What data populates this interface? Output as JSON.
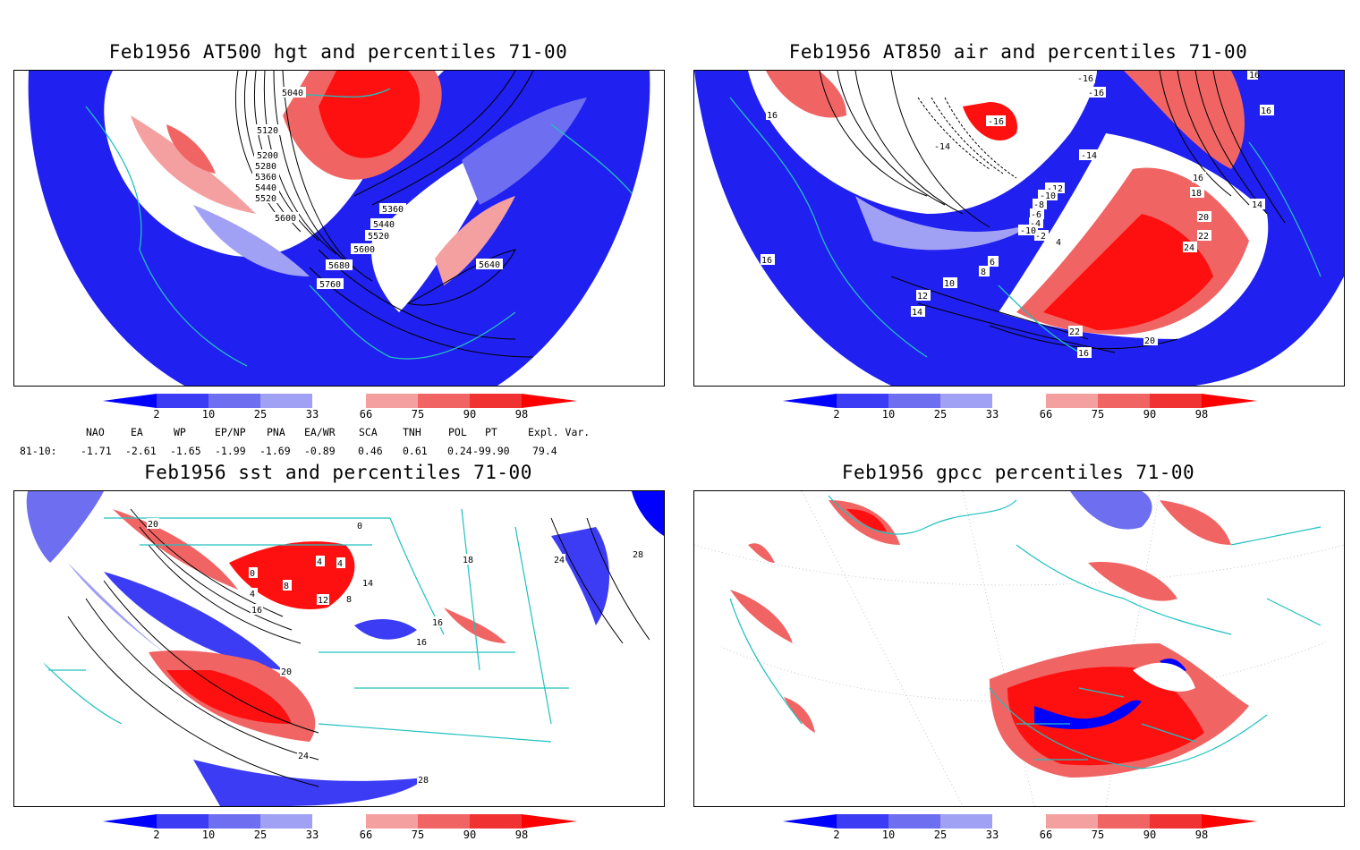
{
  "panels": [
    {
      "title": "Feb1956 AT500 hgt and percentiles 71-00",
      "contour_labels": [
        "5040",
        "5120",
        "5200",
        "5280",
        "5360",
        "5440",
        "5520",
        "5600",
        "5360",
        "5440",
        "5520",
        "5600",
        "5680",
        "5760",
        "5640"
      ]
    },
    {
      "title": "Feb1956 AT850 air and percentiles 71-00",
      "contour_labels": [
        "-16",
        "-16",
        "-16",
        "16",
        "16",
        "-14",
        "-14",
        "-12",
        "-10",
        "-8",
        "-6",
        "-4",
        "-2",
        "-10",
        "4",
        "6",
        "8",
        "10",
        "12",
        "14",
        "16",
        "16",
        "18",
        "20",
        "22",
        "24",
        "16",
        "14",
        "20",
        "22",
        "16",
        "18"
      ]
    },
    {
      "title": "Feb1956 sst and percentiles 71-00",
      "contour_labels": [
        "20",
        "0",
        "4",
        "8",
        "12",
        "16",
        "0",
        "4",
        "4",
        "8",
        "14",
        "16",
        "16",
        "20",
        "24",
        "28",
        "28",
        "24",
        "18"
      ]
    },
    {
      "title": "Feb1956 gpcc percentiles 71-00",
      "contour_labels": []
    }
  ],
  "colorbar": {
    "ticks": [
      "2",
      "10",
      "25",
      "33",
      "66",
      "75",
      "90",
      "98"
    ],
    "colors": [
      "#0000ff",
      "#3c3cf5",
      "#6e6ef0",
      "#a0a0f5",
      "#ffffff",
      "#f5a0a0",
      "#f06464",
      "#f03232",
      "#ff0000"
    ]
  },
  "indices": {
    "header": [
      "NAO",
      "EA",
      "WP",
      "EP/NP",
      "PNA",
      "EA/WR",
      "SCA",
      "TNH",
      "POL",
      "PT",
      "Expl. Var."
    ],
    "row_label": "81-10:",
    "values": [
      "-1.71",
      "-2.61",
      "-1.65",
      "-1.99",
      "-1.69",
      "-0.89",
      "0.46",
      "0.61",
      "0.24",
      "-99.90",
      "79.4"
    ]
  }
}
